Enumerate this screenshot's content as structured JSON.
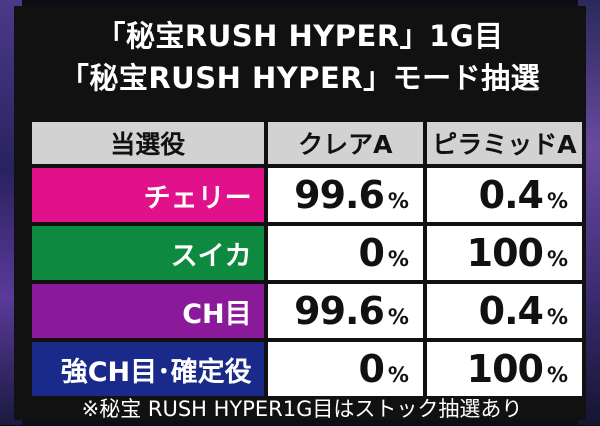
{
  "title_line1": "「秘宝RUSH HYPER」1G目",
  "title_line2": "「秘宝RUSH HYPER」モード抽選",
  "table": {
    "headers": [
      "当選役",
      "クレアA",
      "ピラミッドA"
    ],
    "unit": "%",
    "rows": [
      {
        "label": "チェリー",
        "color": "#e0118a",
        "values": [
          "99.6",
          "0.4"
        ]
      },
      {
        "label": "スイカ",
        "color": "#0e8a40",
        "values": [
          "0",
          "100"
        ]
      },
      {
        "label": "CH目",
        "color": "#8a1a9a",
        "values": [
          "99.6",
          "0.4"
        ]
      },
      {
        "label": "強CH目･確定役",
        "color": "#1a2a8a",
        "values": [
          "0",
          "100"
        ]
      }
    ]
  },
  "footer": "※秘宝 RUSH HYPER1G目はストック抽選あり"
}
